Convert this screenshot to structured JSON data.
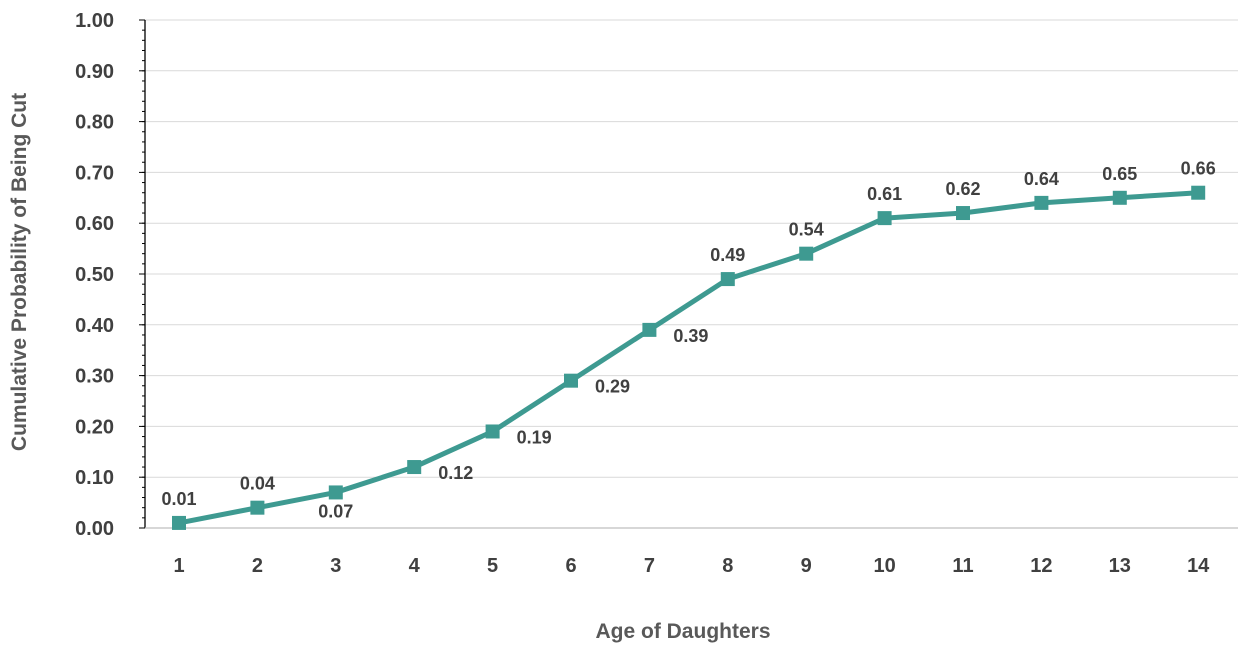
{
  "chart_data": {
    "type": "line",
    "title": "",
    "xlabel": "Age of Daughters",
    "ylabel": "Cumulative Probability of Being Cut",
    "categories": [
      "1",
      "2",
      "3",
      "4",
      "5",
      "6",
      "7",
      "8",
      "9",
      "10",
      "11",
      "12",
      "13",
      "14"
    ],
    "series": [
      {
        "values": [
          0.01,
          0.04,
          0.07,
          0.12,
          0.19,
          0.29,
          0.39,
          0.49,
          0.54,
          0.61,
          0.62,
          0.64,
          0.65,
          0.66
        ],
        "data_labels": [
          "0.01",
          "0.04",
          "0.07",
          "0.12",
          "0.19",
          "0.29",
          "0.39",
          "0.49",
          "0.54",
          "0.61",
          "0.62",
          "0.64",
          "0.65",
          "0.66"
        ],
        "color": "#3e9a91",
        "marker": "square"
      }
    ],
    "y_ticks": [
      "0.00",
      "0.10",
      "0.20",
      "0.30",
      "0.40",
      "0.50",
      "0.60",
      "0.70",
      "0.80",
      "0.90",
      "1.00"
    ],
    "ylim": [
      0,
      1
    ],
    "grid": true,
    "legend": "none",
    "colors": {
      "series": "#3e9a91",
      "grid": "#d9d9d9",
      "axis": "#000000",
      "text": "#404040"
    }
  }
}
